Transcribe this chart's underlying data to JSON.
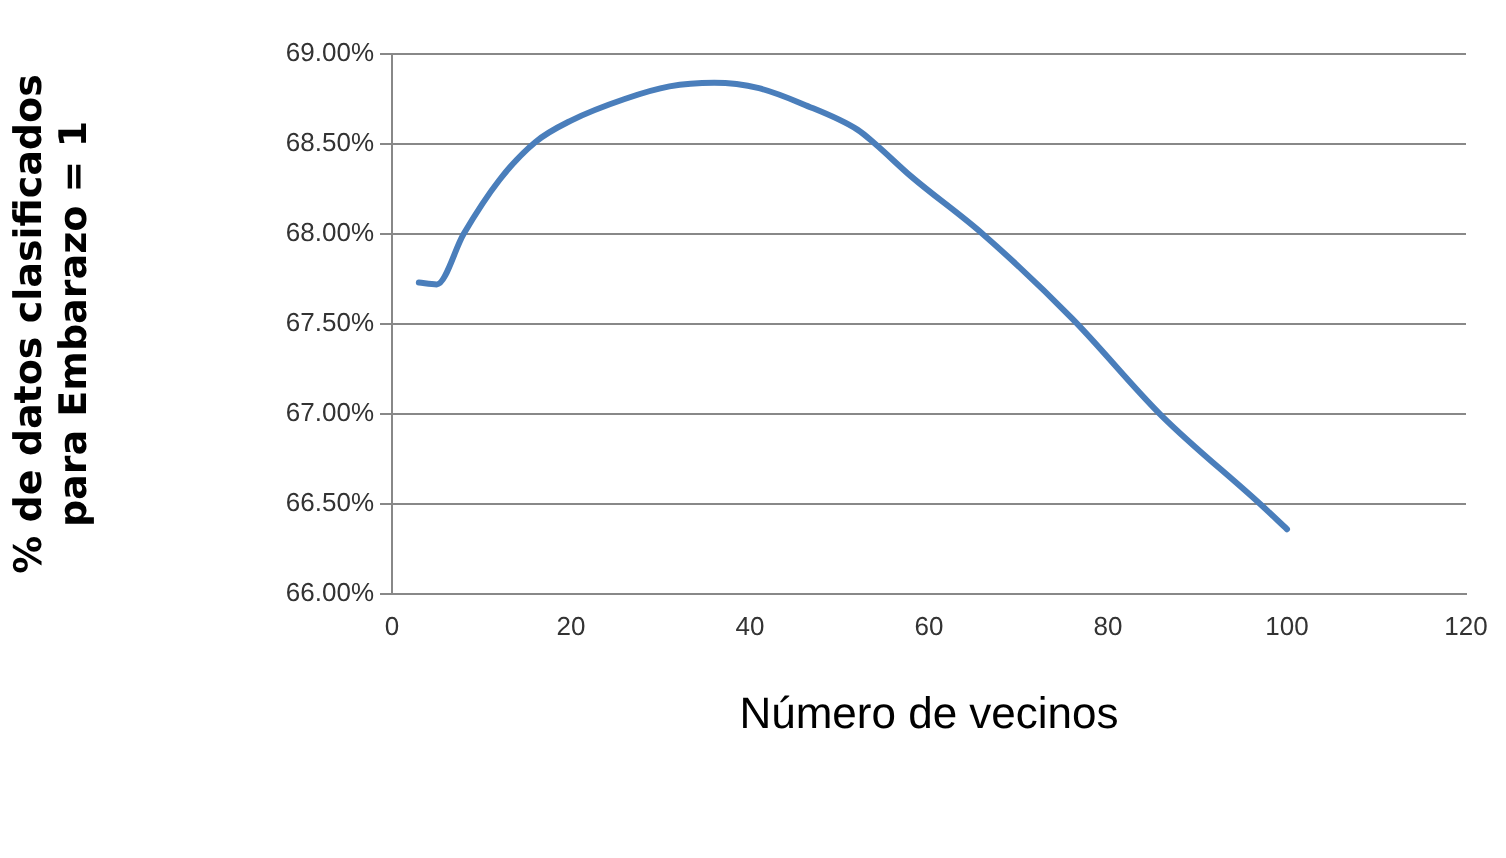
{
  "chart_data": {
    "type": "line",
    "xlabel": "Número de vecinos",
    "ylabel": "% de datos clasificados para Embarazo = 1",
    "x": [
      3,
      5,
      8,
      12,
      16,
      20,
      26,
      31,
      36,
      41,
      46,
      52,
      54,
      58,
      66,
      76,
      86,
      97,
      100
    ],
    "series": [
      {
        "color": "#4a7ebb",
        "values": [
          67.73,
          67.72,
          68.0,
          68.3,
          68.51,
          68.63,
          68.75,
          68.82,
          68.84,
          68.81,
          68.72,
          68.58,
          68.5,
          68.32,
          68.0,
          67.53,
          66.99,
          66.5,
          66.36
        ]
      }
    ],
    "xlim": [
      0,
      120
    ],
    "xticks": [
      0,
      20,
      40,
      60,
      80,
      100,
      120
    ],
    "ylim": [
      66,
      69
    ],
    "yticks": [
      {
        "value": 66,
        "label": "66.00%"
      },
      {
        "value": 66.5,
        "label": "66.50%"
      },
      {
        "value": 67,
        "label": "67.00%"
      },
      {
        "value": 67.5,
        "label": "67.50%"
      },
      {
        "value": 68,
        "label": "68.00%"
      },
      {
        "value": 68.5,
        "label": "68.50%"
      },
      {
        "value": 69,
        "label": "69.00%"
      }
    ],
    "grid": "y",
    "legend": false,
    "marker": "none",
    "line_style": "solid"
  }
}
